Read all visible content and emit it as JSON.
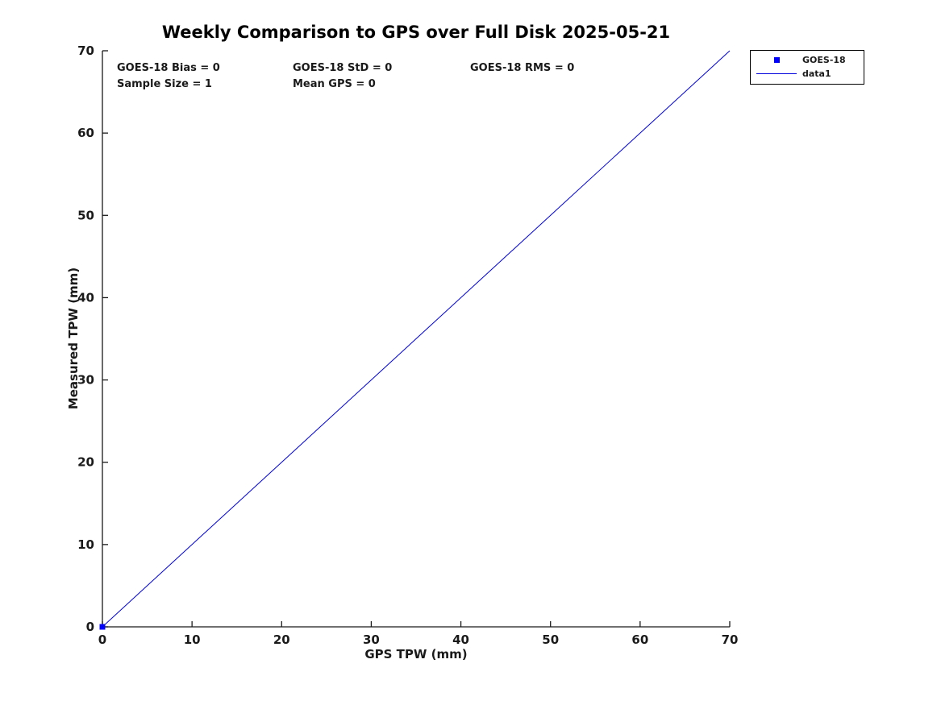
{
  "chart_data": {
    "type": "line",
    "title": "Weekly Comparison to GPS over Full Disk 2025-05-21",
    "xlabel": "GPS TPW (mm)",
    "ylabel": "Measured TPW (mm)",
    "xlim": [
      0,
      70
    ],
    "ylim": [
      0,
      70
    ],
    "xticks": [
      0,
      10,
      20,
      30,
      40,
      50,
      60,
      70
    ],
    "yticks": [
      0,
      10,
      20,
      30,
      40,
      50,
      60,
      70
    ],
    "grid": false,
    "series": [
      {
        "name": "GOES-18",
        "type": "scatter",
        "marker": "square",
        "color": "#0000ff",
        "x": [
          0
        ],
        "y": [
          0
        ]
      },
      {
        "name": "data1",
        "type": "line",
        "color": "#0000dd",
        "x": [
          0,
          70
        ],
        "y": [
          0,
          70
        ]
      }
    ],
    "legend": {
      "position": "top-right",
      "entries": [
        "GOES-18",
        "data1"
      ]
    },
    "annotations": [
      {
        "text": "GOES-18 Bias = 0"
      },
      {
        "text": "GOES-18 StD = 0"
      },
      {
        "text": "GOES-18 RMS = 0"
      },
      {
        "text": "Sample Size = 1"
      },
      {
        "text": "Mean GPS = 0"
      }
    ],
    "stats": {
      "bias": 0,
      "std": 0,
      "rms": 0,
      "sample_size": 1,
      "mean_gps": 0
    }
  }
}
